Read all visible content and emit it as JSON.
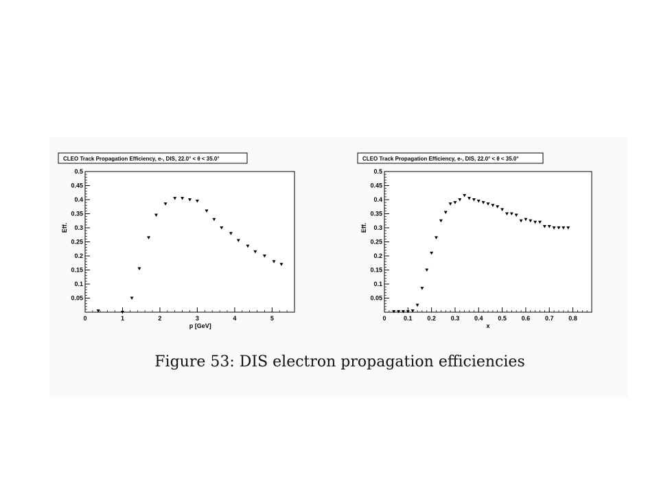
{
  "caption": "Figure 53: DIS electron propagation efficiencies",
  "chart_data": [
    {
      "type": "scatter",
      "title": "CLEO Track Propagation Efficiency, e-, DIS, 22.0° < θ < 35.0°",
      "xlabel": "p [GeV]",
      "ylabel": "Eff.",
      "xlim": [
        0,
        5.6
      ],
      "ylim": [
        0,
        0.5
      ],
      "x_ticks": [
        0,
        1,
        2,
        3,
        4,
        5
      ],
      "x_tick_labels": [
        "0",
        "1",
        "2",
        "3",
        "4",
        "5"
      ],
      "y_ticks": [
        0.05,
        0.1,
        0.15,
        0.2,
        0.25,
        0.3,
        0.35,
        0.4,
        0.45,
        0.5
      ],
      "y_tick_labels": [
        "0.05",
        "0.1",
        "0.15",
        "0.2",
        "0.25",
        "0.3",
        "0.35",
        "0.4",
        "0.45",
        "0.5"
      ],
      "marker": "inverted-triangle",
      "grid": false,
      "x": [
        0.35,
        1.0,
        1.25,
        1.45,
        1.7,
        1.9,
        2.15,
        2.4,
        2.6,
        2.8,
        3.0,
        3.25,
        3.45,
        3.65,
        3.9,
        4.1,
        4.35,
        4.55,
        4.8,
        5.05,
        5.25
      ],
      "y": [
        0.005,
        0.0,
        0.05,
        0.155,
        0.265,
        0.345,
        0.385,
        0.405,
        0.405,
        0.4,
        0.395,
        0.36,
        0.33,
        0.3,
        0.28,
        0.255,
        0.235,
        0.215,
        0.2,
        0.18,
        0.17
      ]
    },
    {
      "type": "scatter",
      "title": "CLEO Track Propagation Efficiency, e-, DIS, 22.0° < θ < 35.0°",
      "xlabel": "x",
      "ylabel": "Eff.",
      "xlim": [
        0,
        0.88
      ],
      "ylim": [
        0,
        0.5
      ],
      "x_ticks": [
        0,
        0.1,
        0.2,
        0.3,
        0.4,
        0.5,
        0.6,
        0.7,
        0.8
      ],
      "x_tick_labels": [
        "0",
        "0.1",
        "0.2",
        "0.3",
        "0.4",
        "0.5",
        "0.6",
        "0.7",
        "0.8"
      ],
      "y_ticks": [
        0.05,
        0.1,
        0.15,
        0.2,
        0.25,
        0.3,
        0.35,
        0.4,
        0.45,
        0.5
      ],
      "y_tick_labels": [
        "0.05",
        "0.1",
        "0.15",
        "0.2",
        "0.25",
        "0.3",
        "0.35",
        "0.4",
        "0.45",
        "0.5"
      ],
      "marker": "inverted-triangle",
      "grid": false,
      "x": [
        0.04,
        0.06,
        0.08,
        0.1,
        0.12,
        0.14,
        0.16,
        0.18,
        0.2,
        0.22,
        0.24,
        0.26,
        0.28,
        0.3,
        0.32,
        0.34,
        0.36,
        0.38,
        0.4,
        0.42,
        0.44,
        0.46,
        0.48,
        0.5,
        0.52,
        0.54,
        0.56,
        0.58,
        0.6,
        0.62,
        0.64,
        0.66,
        0.68,
        0.7,
        0.72,
        0.74,
        0.76,
        0.78
      ],
      "y": [
        0.002,
        0.002,
        0.002,
        0.002,
        0.005,
        0.025,
        0.085,
        0.15,
        0.21,
        0.265,
        0.325,
        0.355,
        0.385,
        0.39,
        0.4,
        0.415,
        0.405,
        0.4,
        0.395,
        0.39,
        0.385,
        0.38,
        0.375,
        0.365,
        0.35,
        0.35,
        0.345,
        0.325,
        0.33,
        0.325,
        0.32,
        0.32,
        0.305,
        0.305,
        0.3,
        0.3,
        0.3,
        0.3
      ]
    }
  ]
}
